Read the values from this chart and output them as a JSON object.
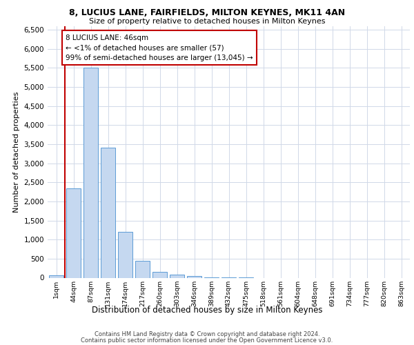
{
  "title_line1": "8, LUCIUS LANE, FAIRFIELDS, MILTON KEYNES, MK11 4AN",
  "title_line2": "Size of property relative to detached houses in Milton Keynes",
  "xlabel": "Distribution of detached houses by size in Milton Keynes",
  "ylabel": "Number of detached properties",
  "footer_line1": "Contains HM Land Registry data © Crown copyright and database right 2024.",
  "footer_line2": "Contains public sector information licensed under the Open Government Licence v3.0.",
  "annotation_line1": "8 LUCIUS LANE: 46sqm",
  "annotation_line2": "← <1% of detached houses are smaller (57)",
  "annotation_line3": "99% of semi-detached houses are larger (13,045) →",
  "bar_color": "#c5d8f0",
  "bar_edge_color": "#5b9bd5",
  "highlight_color": "#c00000",
  "categories": [
    "1sqm",
    "44sqm",
    "87sqm",
    "131sqm",
    "174sqm",
    "217sqm",
    "260sqm",
    "303sqm",
    "346sqm",
    "389sqm",
    "432sqm",
    "475sqm",
    "518sqm",
    "561sqm",
    "604sqm",
    "648sqm",
    "691sqm",
    "734sqm",
    "777sqm",
    "820sqm",
    "863sqm"
  ],
  "values": [
    57,
    2350,
    5500,
    3400,
    1200,
    450,
    150,
    80,
    50,
    5,
    5,
    5,
    0,
    0,
    0,
    0,
    0,
    0,
    0,
    0,
    0
  ],
  "ylim": [
    0,
    6600
  ],
  "yticks": [
    0,
    500,
    1000,
    1500,
    2000,
    2500,
    3000,
    3500,
    4000,
    4500,
    5000,
    5500,
    6000,
    6500
  ],
  "background_color": "#ffffff",
  "grid_color": "#d0d8e8"
}
